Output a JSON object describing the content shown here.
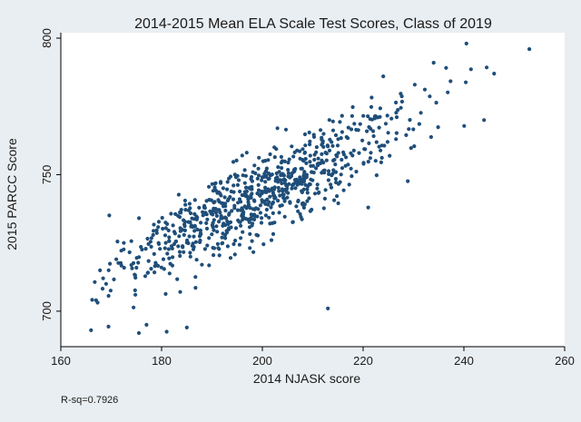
{
  "chart_data": {
    "type": "scatter",
    "title": "2014-2015 Mean ELA Scale Test Scores, Class of 2019",
    "xlabel": "2014 NJASK score",
    "ylabel": "2015 PARCC Score",
    "xlim": [
      160,
      260
    ],
    "ylim": [
      687,
      802
    ],
    "xticks": [
      160,
      180,
      200,
      220,
      240,
      260
    ],
    "yticks": [
      700,
      750,
      800
    ],
    "annotation": "R-sq=0.7926",
    "colors": {
      "background": "#e9eef2",
      "plot_bg": "#ffffff",
      "point": "#1f4e79"
    },
    "generator": {
      "n": 780,
      "x_min": 166,
      "x_max": 246,
      "slope": 0.95,
      "intercept": 552,
      "noise": 7,
      "seed": 2019
    },
    "outliers": [
      {
        "x": 166,
        "y": 693
      },
      {
        "x": 175.5,
        "y": 692
      },
      {
        "x": 177,
        "y": 695
      },
      {
        "x": 185,
        "y": 694
      },
      {
        "x": 181,
        "y": 692.5
      },
      {
        "x": 213,
        "y": 701
      },
      {
        "x": 240.5,
        "y": 798
      },
      {
        "x": 253,
        "y": 796
      },
      {
        "x": 246,
        "y": 787
      },
      {
        "x": 167,
        "y": 704
      },
      {
        "x": 171,
        "y": 719
      },
      {
        "x": 172.5,
        "y": 725
      },
      {
        "x": 169,
        "y": 710
      },
      {
        "x": 196,
        "y": 757
      },
      {
        "x": 203,
        "y": 767
      },
      {
        "x": 221,
        "y": 738
      },
      {
        "x": 224,
        "y": 786
      },
      {
        "x": 234,
        "y": 791
      },
      {
        "x": 244,
        "y": 770
      },
      {
        "x": 188,
        "y": 717
      }
    ]
  }
}
